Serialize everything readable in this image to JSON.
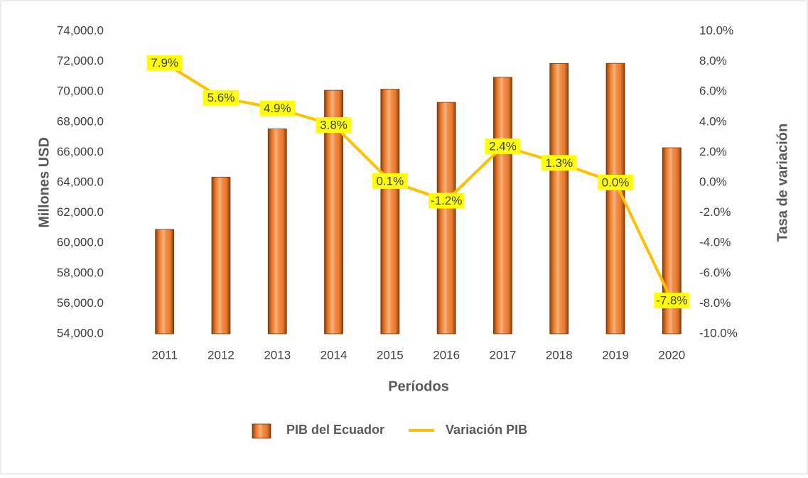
{
  "chart_data": {
    "type": "bar_line",
    "xlabel": "Períodos",
    "ylabel": "Millones USD",
    "y2label": "Tasa de variación",
    "categories": [
      "2011",
      "2012",
      "2013",
      "2014",
      "2015",
      "2016",
      "2017",
      "2018",
      "2019",
      "2020"
    ],
    "series": [
      {
        "name": "PIB del Ecuador",
        "type": "bar",
        "color": "#e8782a",
        "values": [
          60900,
          64360,
          67550,
          70100,
          70170,
          69300,
          70960,
          71870,
          71880,
          66300
        ]
      },
      {
        "name": "Variación PIB",
        "type": "line",
        "axis": "y2",
        "color": "#ffc000",
        "values": [
          7.9,
          5.6,
          4.9,
          3.8,
          0.1,
          -1.2,
          2.4,
          1.3,
          0.0,
          -7.8
        ],
        "value_labels": [
          "7.9%",
          "5.6%",
          "4.9%",
          "3.8%",
          "0.1%",
          "-1.2%",
          "2.4%",
          "1.3%",
          "0.0%",
          "-7.8%"
        ]
      }
    ],
    "ylim": [
      54000,
      74000
    ],
    "yticks": [
      {
        "value": 54000,
        "label": "54,000.0"
      },
      {
        "value": 56000,
        "label": "56,000.0"
      },
      {
        "value": 58000,
        "label": "58,000.0"
      },
      {
        "value": 60000,
        "label": "60,000.0"
      },
      {
        "value": 62000,
        "label": "62,000.0"
      },
      {
        "value": 64000,
        "label": "64,000.0"
      },
      {
        "value": 66000,
        "label": "66,000.0"
      },
      {
        "value": 68000,
        "label": "68,000.0"
      },
      {
        "value": 70000,
        "label": "70,000.0"
      },
      {
        "value": 72000,
        "label": "72,000.0"
      },
      {
        "value": 74000,
        "label": "74,000.0"
      }
    ],
    "y2lim": [
      -10,
      10
    ],
    "y2ticks": [
      {
        "value": -10,
        "label": "-10.0%"
      },
      {
        "value": -8,
        "label": "-8.0%"
      },
      {
        "value": -6,
        "label": "-6.0%"
      },
      {
        "value": -4,
        "label": "-4.0%"
      },
      {
        "value": -2,
        "label": "-2.0%"
      },
      {
        "value": 0,
        "label": "0.0%"
      },
      {
        "value": 2,
        "label": "2.0%"
      },
      {
        "value": 4,
        "label": "4.0%"
      },
      {
        "value": 6,
        "label": "6.0%"
      },
      {
        "value": 8,
        "label": "8.0%"
      },
      {
        "value": 10,
        "label": "10.0%"
      }
    ],
    "legend": "bottom"
  }
}
